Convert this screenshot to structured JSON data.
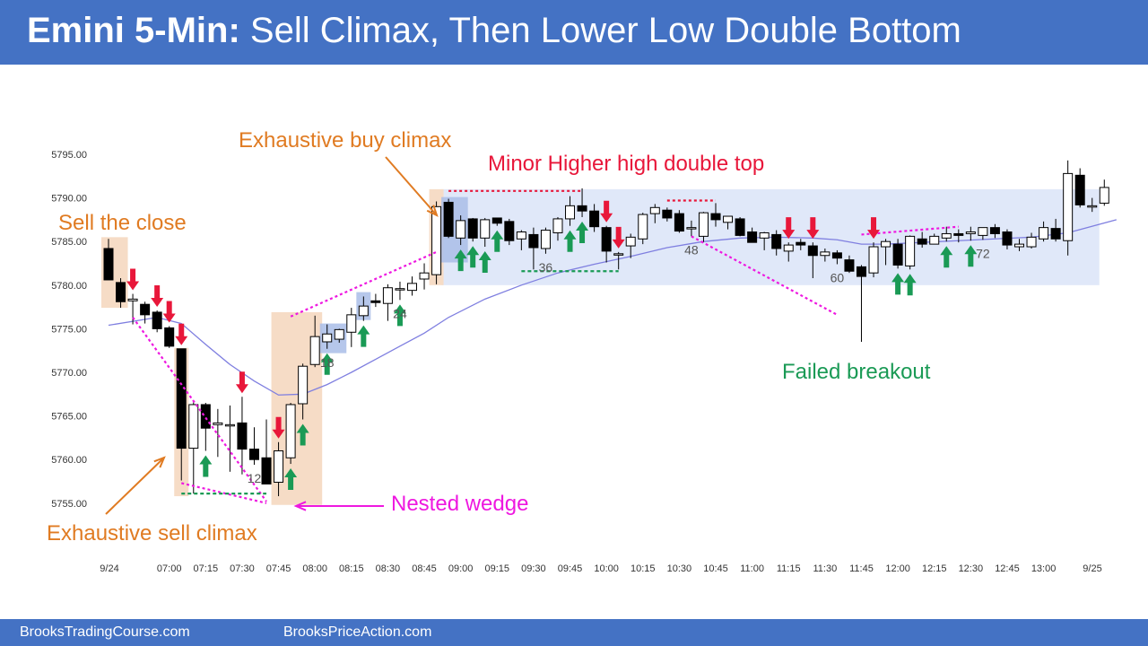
{
  "header": {
    "title_bold": "Emini 5-Min:",
    "title_rest": " Sell Climax, Then Lower Low Double Bottom"
  },
  "footer": {
    "link1": "BrooksTradingCourse.com",
    "link2": "BrooksPriceAction.com"
  },
  "colors": {
    "header_bg": "#4472c4",
    "orange": "#e07b22",
    "red": "#e8173a",
    "green": "#1a9a55",
    "magenta": "#ee18e0",
    "ema": "#7f7fe0",
    "range_box": "#dbe4f8",
    "orange_box": "#f6dcc6"
  },
  "chart_data": {
    "type": "candlestick",
    "timeframe": "5-Min",
    "ylim": [
      5754,
      5797
    ],
    "y_ticks": [
      "5795.00",
      "5790.00",
      "5785.00",
      "5780.00",
      "5775.00",
      "5770.00",
      "5765.00",
      "5760.00",
      "5755.00"
    ],
    "x_ticks": [
      "9/24",
      "07:00",
      "07:15",
      "07:30",
      "07:45",
      "08:00",
      "08:15",
      "08:30",
      "08:45",
      "09:00",
      "09:15",
      "09:30",
      "09:45",
      "10:00",
      "10:15",
      "10:30",
      "10:45",
      "11:00",
      "11:15",
      "11:30",
      "11:45",
      "12:00",
      "12:15",
      "12:30",
      "12:45",
      "13:00",
      "9/25"
    ],
    "bar_labels": [
      {
        "bar": 12,
        "text": "12"
      },
      {
        "bar": 18,
        "text": "18"
      },
      {
        "bar": 24,
        "text": "24"
      },
      {
        "bar": 36,
        "text": "36"
      },
      {
        "bar": 48,
        "text": "48"
      },
      {
        "bar": 60,
        "text": "60"
      },
      {
        "bar": 72,
        "text": "72"
      }
    ],
    "bars": [
      {
        "o": 5784.2,
        "h": 5785.3,
        "l": 5780.6,
        "c": 5780.6
      },
      {
        "o": 5780.3,
        "h": 5780.8,
        "l": 5777.4,
        "c": 5778.1
      },
      {
        "o": 5778.2,
        "h": 5779.0,
        "l": 5775.5,
        "c": 5778.4
      },
      {
        "o": 5777.8,
        "h": 5778.1,
        "l": 5775.6,
        "c": 5776.6
      },
      {
        "o": 5776.9,
        "h": 5777.1,
        "l": 5774.6,
        "c": 5775.0
      },
      {
        "o": 5775.1,
        "h": 5775.3,
        "l": 5772.8,
        "c": 5773.0
      },
      {
        "o": 5772.7,
        "h": 5772.7,
        "l": 5757.6,
        "c": 5761.3
      },
      {
        "o": 5761.3,
        "h": 5766.6,
        "l": 5756.1,
        "c": 5766.3
      },
      {
        "o": 5766.3,
        "h": 5766.5,
        "l": 5761.0,
        "c": 5763.6
      },
      {
        "o": 5764.0,
        "h": 5765.8,
        "l": 5760.3,
        "c": 5764.2
      },
      {
        "o": 5764.0,
        "h": 5766.2,
        "l": 5758.6,
        "c": 5764.0
      },
      {
        "o": 5764.2,
        "h": 5767.2,
        "l": 5758.3,
        "c": 5761.2
      },
      {
        "o": 5761.2,
        "h": 5763.7,
        "l": 5759.4,
        "c": 5760.0
      },
      {
        "o": 5760.2,
        "h": 5764.6,
        "l": 5757.5,
        "c": 5757.2
      },
      {
        "o": 5757.4,
        "h": 5762.0,
        "l": 5755.8,
        "c": 5761.0
      },
      {
        "o": 5760.2,
        "h": 5766.5,
        "l": 5759.5,
        "c": 5766.3
      },
      {
        "o": 5766.4,
        "h": 5771.0,
        "l": 5764.6,
        "c": 5770.7
      },
      {
        "o": 5770.9,
        "h": 5776.5,
        "l": 5770.6,
        "c": 5774.1
      },
      {
        "o": 5773.5,
        "h": 5775.5,
        "l": 5772.7,
        "c": 5774.4
      },
      {
        "o": 5773.8,
        "h": 5775.0,
        "l": 5773.4,
        "c": 5774.9
      },
      {
        "o": 5774.6,
        "h": 5777.4,
        "l": 5772.9,
        "c": 5776.6
      },
      {
        "o": 5776.5,
        "h": 5778.7,
        "l": 5775.9,
        "c": 5777.6
      },
      {
        "o": 5778.2,
        "h": 5779.0,
        "l": 5777.5,
        "c": 5778.0
      },
      {
        "o": 5777.9,
        "h": 5780.1,
        "l": 5775.9,
        "c": 5779.7
      },
      {
        "o": 5779.5,
        "h": 5780.4,
        "l": 5778.3,
        "c": 5779.6
      },
      {
        "o": 5779.4,
        "h": 5781.0,
        "l": 5778.8,
        "c": 5780.2
      },
      {
        "o": 5780.7,
        "h": 5782.5,
        "l": 5779.5,
        "c": 5781.4
      },
      {
        "o": 5781.2,
        "h": 5789.6,
        "l": 5780.1,
        "c": 5789.0
      },
      {
        "o": 5789.5,
        "h": 5789.9,
        "l": 5785.4,
        "c": 5785.6
      },
      {
        "o": 5785.4,
        "h": 5788.0,
        "l": 5784.6,
        "c": 5787.4
      },
      {
        "o": 5787.6,
        "h": 5787.7,
        "l": 5785.0,
        "c": 5785.4
      },
      {
        "o": 5785.4,
        "h": 5787.7,
        "l": 5784.4,
        "c": 5787.5
      },
      {
        "o": 5787.7,
        "h": 5787.7,
        "l": 5786.8,
        "c": 5787.1
      },
      {
        "o": 5787.3,
        "h": 5787.6,
        "l": 5784.6,
        "c": 5785.1
      },
      {
        "o": 5785.3,
        "h": 5786.3,
        "l": 5784.0,
        "c": 5786.1
      },
      {
        "o": 5785.8,
        "h": 5786.6,
        "l": 5781.8,
        "c": 5784.3
      },
      {
        "o": 5784.2,
        "h": 5786.6,
        "l": 5783.6,
        "c": 5786.3
      },
      {
        "o": 5786.0,
        "h": 5787.8,
        "l": 5785.1,
        "c": 5787.6
      },
      {
        "o": 5787.6,
        "h": 5790.2,
        "l": 5786.8,
        "c": 5789.1
      },
      {
        "o": 5789.1,
        "h": 5791.1,
        "l": 5787.8,
        "c": 5788.5
      },
      {
        "o": 5788.5,
        "h": 5789.3,
        "l": 5786.1,
        "c": 5786.7
      },
      {
        "o": 5786.6,
        "h": 5786.8,
        "l": 5782.6,
        "c": 5783.9
      },
      {
        "o": 5783.5,
        "h": 5783.8,
        "l": 5781.8,
        "c": 5783.6
      },
      {
        "o": 5784.5,
        "h": 5785.9,
        "l": 5783.1,
        "c": 5785.5
      },
      {
        "o": 5785.3,
        "h": 5788.3,
        "l": 5784.7,
        "c": 5788.1
      },
      {
        "o": 5788.2,
        "h": 5789.3,
        "l": 5787.1,
        "c": 5788.9
      },
      {
        "o": 5788.6,
        "h": 5788.9,
        "l": 5787.3,
        "c": 5787.7
      },
      {
        "o": 5788.2,
        "h": 5788.6,
        "l": 5786.0,
        "c": 5786.2
      },
      {
        "o": 5786.5,
        "h": 5787.4,
        "l": 5785.6,
        "c": 5786.6
      },
      {
        "o": 5785.6,
        "h": 5788.4,
        "l": 5784.9,
        "c": 5788.3
      },
      {
        "o": 5788.2,
        "h": 5789.4,
        "l": 5786.7,
        "c": 5787.5
      },
      {
        "o": 5787.2,
        "h": 5787.9,
        "l": 5786.4,
        "c": 5787.9
      },
      {
        "o": 5787.6,
        "h": 5787.8,
        "l": 5785.6,
        "c": 5785.7
      },
      {
        "o": 5786.1,
        "h": 5786.6,
        "l": 5784.9,
        "c": 5784.9
      },
      {
        "o": 5785.4,
        "h": 5786.1,
        "l": 5784.0,
        "c": 5786.0
      },
      {
        "o": 5785.8,
        "h": 5786.3,
        "l": 5783.4,
        "c": 5784.2
      },
      {
        "o": 5783.9,
        "h": 5784.9,
        "l": 5782.7,
        "c": 5784.6
      },
      {
        "o": 5784.9,
        "h": 5785.3,
        "l": 5784.0,
        "c": 5784.6
      },
      {
        "o": 5784.5,
        "h": 5784.9,
        "l": 5780.8,
        "c": 5783.4
      },
      {
        "o": 5783.4,
        "h": 5784.2,
        "l": 5782.7,
        "c": 5783.8
      },
      {
        "o": 5783.7,
        "h": 5784.0,
        "l": 5782.4,
        "c": 5783.1
      },
      {
        "o": 5782.9,
        "h": 5783.4,
        "l": 5781.4,
        "c": 5781.6
      },
      {
        "o": 5782.1,
        "h": 5782.3,
        "l": 5773.5,
        "c": 5781.0
      },
      {
        "o": 5781.4,
        "h": 5784.9,
        "l": 5780.9,
        "c": 5784.4
      },
      {
        "o": 5784.4,
        "h": 5785.3,
        "l": 5782.3,
        "c": 5785.0
      },
      {
        "o": 5784.7,
        "h": 5785.3,
        "l": 5781.9,
        "c": 5782.3
      },
      {
        "o": 5782.2,
        "h": 5785.7,
        "l": 5781.8,
        "c": 5785.6
      },
      {
        "o": 5785.3,
        "h": 5786.1,
        "l": 5784.3,
        "c": 5784.7
      },
      {
        "o": 5784.7,
        "h": 5785.9,
        "l": 5784.7,
        "c": 5785.6
      },
      {
        "o": 5785.4,
        "h": 5786.7,
        "l": 5785.0,
        "c": 5785.9
      },
      {
        "o": 5785.9,
        "h": 5786.4,
        "l": 5784.9,
        "c": 5785.7
      },
      {
        "o": 5785.9,
        "h": 5786.7,
        "l": 5785.1,
        "c": 5786.1
      },
      {
        "o": 5785.7,
        "h": 5786.5,
        "l": 5785.2,
        "c": 5786.6
      },
      {
        "o": 5786.6,
        "h": 5787.0,
        "l": 5785.4,
        "c": 5785.9
      },
      {
        "o": 5786.1,
        "h": 5786.4,
        "l": 5784.1,
        "c": 5784.6
      },
      {
        "o": 5784.4,
        "h": 5785.3,
        "l": 5783.9,
        "c": 5784.7
      },
      {
        "o": 5784.4,
        "h": 5786.0,
        "l": 5784.2,
        "c": 5785.5
      },
      {
        "o": 5785.3,
        "h": 5787.3,
        "l": 5785.0,
        "c": 5786.6
      },
      {
        "o": 5786.5,
        "h": 5787.6,
        "l": 5785.0,
        "c": 5785.3
      },
      {
        "o": 5785.1,
        "h": 5794.3,
        "l": 5783.4,
        "c": 5792.8
      },
      {
        "o": 5792.6,
        "h": 5793.4,
        "l": 5788.9,
        "c": 5789.2
      },
      {
        "o": 5789.1,
        "h": 5790.0,
        "l": 5788.4,
        "c": 5789.1
      },
      {
        "o": 5789.4,
        "h": 5792.1,
        "l": 5789.1,
        "c": 5791.2
      }
    ],
    "ema": [
      [
        0,
        5775.4
      ],
      [
        4,
        5776.3
      ],
      [
        6,
        5775.6
      ],
      [
        8,
        5773.2
      ],
      [
        10,
        5770.9
      ],
      [
        12,
        5769.0
      ],
      [
        14,
        5767.4
      ],
      [
        16,
        5767.5
      ],
      [
        18,
        5768.6
      ],
      [
        20,
        5770.0
      ],
      [
        22,
        5771.5
      ],
      [
        24,
        5773.0
      ],
      [
        26,
        5774.5
      ],
      [
        28,
        5776.3
      ],
      [
        31,
        5778.4
      ],
      [
        34,
        5780.0
      ],
      [
        37,
        5781.4
      ],
      [
        40,
        5782.4
      ],
      [
        43,
        5783.3
      ],
      [
        46,
        5784.3
      ],
      [
        49,
        5785.0
      ],
      [
        52,
        5785.4
      ],
      [
        55,
        5785.5
      ],
      [
        58,
        5785.4
      ],
      [
        60,
        5785.2
      ],
      [
        62,
        5784.7
      ],
      [
        64,
        5784.7
      ],
      [
        67,
        5784.9
      ],
      [
        70,
        5785.1
      ],
      [
        73,
        5785.3
      ],
      [
        76,
        5785.5
      ],
      [
        79,
        5786.0
      ],
      [
        83,
        5787.5
      ]
    ],
    "annotations": {
      "sell_the_close": "Sell the close",
      "exhaustive_buy_climax": "Exhaustive buy climax",
      "minor_higher_high": "Minor Higher high double top",
      "exhaustive_sell_climax": "Exhaustive sell climax",
      "nested_wedge": "Nested wedge",
      "failed_breakout": "Failed breakout"
    },
    "signal_arrows": {
      "red_down_bars": [
        2,
        4,
        5,
        6,
        11,
        14,
        41,
        42,
        56,
        58,
        63
      ],
      "green_up_bars": [
        8,
        15,
        16,
        18,
        21,
        24,
        29,
        30,
        31,
        32,
        38,
        39,
        65,
        66,
        69,
        71
      ]
    }
  }
}
